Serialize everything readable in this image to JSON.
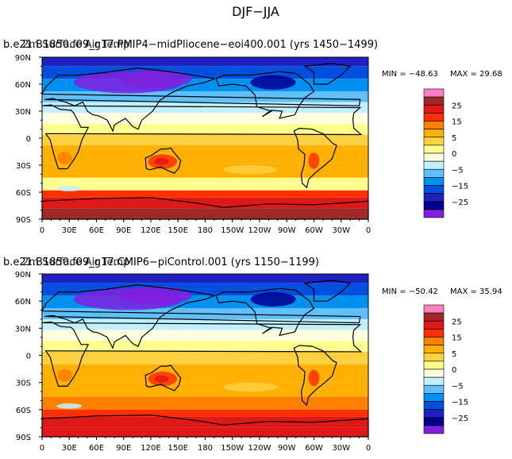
{
  "figure_title": "DJF−JJA",
  "colorbar": {
    "labels": [
      "25",
      "15",
      "5",
      "0",
      "−5",
      "−15",
      "−25"
    ],
    "colors": [
      "#ff80c0",
      "#a02828",
      "#e01818",
      "#ff3000",
      "#ff8000",
      "#ffb000",
      "#ffd040",
      "#ffff90",
      "#ffffe0",
      "#c0f0ff",
      "#60c0ff",
      "#0090f0",
      "#0050e0",
      "#2020c0",
      "#000090",
      "#8020e0"
    ]
  },
  "chart_data": [
    {
      "type": "heatmap",
      "title_left": "b.e21.B1850.f09_g17.PMIP4−midPliocene−eoi400.001 (yrs 1450−1499)",
      "title_overlap": "2m Surface Air Temp",
      "variable": "2m Surface Air Temp",
      "season_difference": "DJF−JJA",
      "min": -48.63,
      "max": 29.68,
      "min_label": "MIN = −48.63",
      "max_label": "MAX =   29.68",
      "xticks": [
        "0",
        "30E",
        "60E",
        "90E",
        "120E",
        "150E",
        "180",
        "150W",
        "120W",
        "90W",
        "60W",
        "30W",
        "0"
      ],
      "yticks": [
        "90N",
        "60N",
        "30N",
        "0",
        "30S",
        "60S",
        "90S"
      ],
      "xlim": [
        0,
        360
      ],
      "ylim": [
        -90,
        90
      ],
      "colorbar_levels": [
        -25,
        -15,
        -5,
        0,
        5,
        15,
        25
      ]
    },
    {
      "type": "heatmap",
      "title_left": "b.e21.B1850.f09_g17.CMIP6−piControl.001 (yrs 1150−1199)",
      "title_overlap": "2m Surface Air Temp",
      "variable": "2m Surface Air Temp",
      "season_difference": "DJF−JJA",
      "min": -50.42,
      "max": 35.94,
      "min_label": "MIN = −50.42",
      "max_label": "MAX =   35.94",
      "xticks": [
        "0",
        "30E",
        "60E",
        "90E",
        "120E",
        "150E",
        "180",
        "150W",
        "120W",
        "90W",
        "60W",
        "30W",
        "0"
      ],
      "yticks": [
        "90N",
        "60N",
        "30N",
        "0",
        "30S",
        "60S",
        "90S"
      ],
      "xlim": [
        0,
        360
      ],
      "ylim": [
        -90,
        90
      ],
      "colorbar_levels": [
        -25,
        -15,
        -5,
        0,
        5,
        15,
        25
      ]
    }
  ]
}
